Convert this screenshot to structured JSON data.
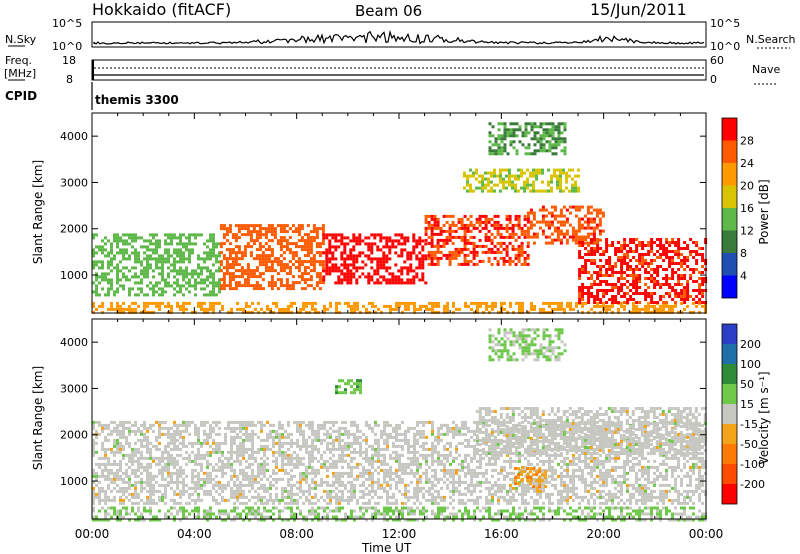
{
  "header": {
    "station": "Hokkaido (fitACF)",
    "beam": "Beam 06",
    "date": "15/Jun/2011"
  },
  "top_panel": {
    "left_label": "N.Sky",
    "left_ticks": [
      "10^5",
      "10^0"
    ],
    "right_ticks": [
      "10^5",
      "10^0"
    ],
    "right_label": "N.Search",
    "freq_label_1": "Freq.",
    "freq_label_2": "[MHz]",
    "freq_ticks": [
      "18",
      "8"
    ],
    "nave_ticks": [
      "60",
      "0"
    ],
    "nave_label": "Nave",
    "cpid_label": "CPID",
    "cpid_value": "themis 3300"
  },
  "axes": {
    "ylabel": "Slant Range [km]",
    "xlabel": "Time UT",
    "xticks": [
      "00:00",
      "04:00",
      "08:00",
      "12:00",
      "16:00",
      "20:00",
      "00:00"
    ],
    "yticks": [
      "1000",
      "2000",
      "3000",
      "4000"
    ]
  },
  "colorbars": {
    "power": {
      "label": "Power [dB]",
      "ticks": [
        "4",
        "8",
        "12",
        "16",
        "20",
        "24",
        "28"
      ],
      "colors": [
        "#0000ff",
        "#1f4fb0",
        "#3a7a3a",
        "#5fb84a",
        "#d8c400",
        "#ff9900",
        "#ff5a00",
        "#ff0000"
      ]
    },
    "velocity": {
      "label": "Velocity [m s⁻¹]",
      "ticks": [
        "200",
        "100",
        "50",
        "15",
        "-15",
        "-50",
        "-100",
        "-200"
      ],
      "colors": [
        "#2b3fc6",
        "#1f70a8",
        "#2f8a3a",
        "#6ec84a",
        "#c7c7c1",
        "#f2a31a",
        "#ff7a00",
        "#ff4a00",
        "#ff0000"
      ]
    }
  },
  "chart_data": [
    {
      "type": "heatmap",
      "title": "Power",
      "xlabel": "Time UT",
      "ylabel": "Slant Range [km]",
      "xlim": [
        0,
        24
      ],
      "ylim": [
        180,
        4500
      ],
      "colorbar_label": "Power [dB]",
      "colorbar_range": [
        0,
        32
      ],
      "scatter_bands": [
        {
          "t_start": 0,
          "t_end": 24,
          "r_low": 180,
          "r_high": 420,
          "value": 22
        },
        {
          "t_start": 0,
          "t_end": 5,
          "r_low": 600,
          "r_high": 1900,
          "value": 14
        },
        {
          "t_start": 5,
          "t_end": 9,
          "r_low": 700,
          "r_high": 2100,
          "value": 26
        },
        {
          "t_start": 9,
          "t_end": 13,
          "r_low": 800,
          "r_high": 1900,
          "value": 30
        },
        {
          "t_start": 13,
          "t_end": 17,
          "r_low": 1200,
          "r_high": 2300,
          "value": 28
        },
        {
          "t_start": 17,
          "t_end": 20,
          "r_low": 1700,
          "r_high": 2500,
          "value": 27
        },
        {
          "t_start": 19,
          "t_end": 24,
          "r_low": 400,
          "r_high": 1800,
          "value": 29
        },
        {
          "t_start": 15.5,
          "t_end": 18.5,
          "r_low": 3600,
          "r_high": 4300,
          "value": 12
        },
        {
          "t_start": 14.5,
          "t_end": 19,
          "r_low": 2800,
          "r_high": 3300,
          "value": 17
        }
      ]
    },
    {
      "type": "heatmap",
      "title": "Velocity",
      "xlabel": "Time UT",
      "ylabel": "Slant Range [km]",
      "xlim": [
        0,
        24
      ],
      "ylim": [
        180,
        4500
      ],
      "colorbar_label": "Velocity [m s⁻¹]",
      "colorbar_range": [
        -200,
        200
      ],
      "scatter_bands": [
        {
          "t_start": 0,
          "t_end": 24,
          "r_low": 180,
          "r_high": 450,
          "value": 30
        },
        {
          "t_start": 0,
          "t_end": 24,
          "r_low": 500,
          "r_high": 2300,
          "value": 0
        },
        {
          "t_start": 15,
          "t_end": 24,
          "r_low": 1600,
          "r_high": 2600,
          "value": 0
        },
        {
          "t_start": 16.5,
          "t_end": 17.7,
          "r_low": 900,
          "r_high": 1300,
          "value": -60
        },
        {
          "t_start": 15.5,
          "t_end": 18.5,
          "r_low": 3600,
          "r_high": 4300,
          "value": 30
        },
        {
          "t_start": 9.5,
          "t_end": 10.5,
          "r_low": 2900,
          "r_high": 3200,
          "value": 60
        }
      ]
    }
  ]
}
